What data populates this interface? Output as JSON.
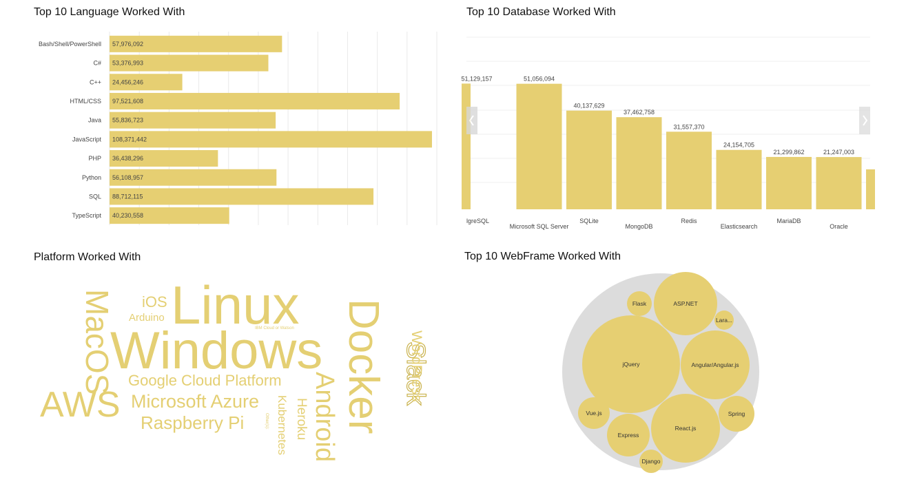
{
  "colors": {
    "bar": "#e6cf72",
    "grid": "#e9e9e9",
    "pack_bg": "#dcdcdc",
    "text": "#111111",
    "word": "#e4cf73"
  },
  "chart_data": [
    {
      "type": "bar",
      "orientation": "horizontal",
      "title": "Top 10 Language Worked With",
      "categories": [
        "Bash/Shell/PowerShell",
        "C#",
        "C++",
        "HTML/CSS",
        "Java",
        "JavaScript",
        "PHP",
        "Python",
        "SQL",
        "TypeScript"
      ],
      "values": [
        57976092,
        53376993,
        24456246,
        97521608,
        55836723,
        108371442,
        36438296,
        56108957,
        88712115,
        40230558
      ],
      "labels": [
        "57,976,092",
        "53,376,993",
        "24,456,246",
        "97,521,608",
        "55,836,723",
        "108,371,442",
        "36,438,296",
        "56,108,957",
        "88,712,115",
        "40,230,558"
      ],
      "xlim": [
        0,
        110000000
      ],
      "grid": true
    },
    {
      "type": "bar",
      "title": "Top 10 Database Worked With",
      "categories": [
        "lgreSQL",
        "Microsoft SQL Server",
        "SQLite",
        "MongoDB",
        "Redis",
        "Elasticsearch",
        "MariaDB",
        "Oracle"
      ],
      "values": [
        51129157,
        51056094,
        40137629,
        37462758,
        31557370,
        24154705,
        21299862,
        21247003
      ],
      "labels": [
        "51,129,157",
        "51,056,094",
        "40,137,629",
        "37,462,758",
        "31,557,370",
        "24,154,705",
        "21,299,862",
        "21,247,003"
      ],
      "ylim": [
        0,
        70000000
      ],
      "grid": true,
      "scroll_left_icon": "chevron-left-icon",
      "scroll_right_icon": "chevron-right-icon"
    },
    {
      "type": "wordcloud",
      "title": "Platform Worked With",
      "words": [
        "Linux",
        "Windows",
        "Docker",
        "AWS",
        "MacOS",
        "Android",
        "Slack",
        "Google Cloud Platform",
        "Microsoft Azure",
        "Raspberry Pi",
        "WordPress",
        "Heroku",
        "Kubernetes",
        "iOS",
        "Arduino",
        "IBM Cloud or Watson",
        "Other(s):"
      ]
    },
    {
      "type": "bubble",
      "title": "Top 10 WebFrame Worked With",
      "bubbles": [
        "jQuery",
        "React.js",
        "Angular/Angular.js",
        "ASP.NET",
        "Express",
        "Spring",
        "Vue.js",
        "Flask",
        "Django",
        "Lara..."
      ],
      "relative_sizes": [
        1.0,
        0.7,
        0.52,
        0.43,
        0.21,
        0.13,
        0.11,
        0.07,
        0.06,
        0.04
      ]
    }
  ]
}
